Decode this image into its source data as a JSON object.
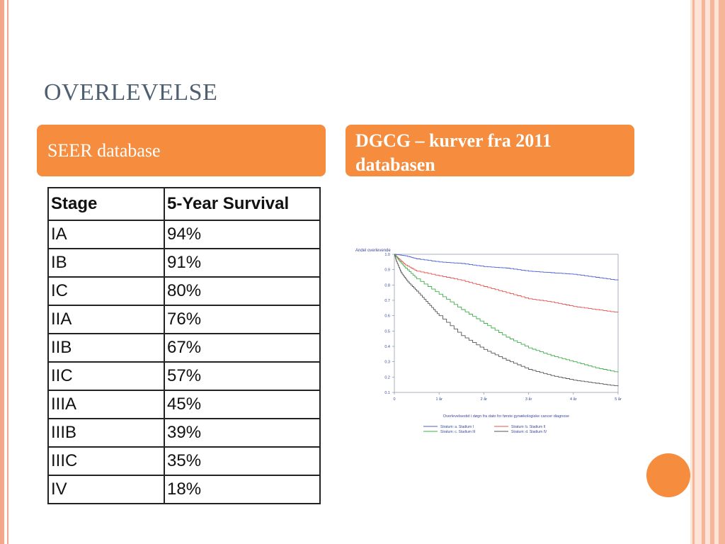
{
  "slide": {
    "title": "OVERLEVELSE",
    "left_box": "SEER database",
    "right_box": "DGCG – kurver fra 2011 databasen"
  },
  "table": {
    "headers": [
      "Stage",
      "5-Year Survival"
    ],
    "rows": [
      [
        "IA",
        "94%"
      ],
      [
        "IB",
        "91%"
      ],
      [
        "IC",
        "80%"
      ],
      [
        "IIA",
        "76%"
      ],
      [
        "IIB",
        "67%"
      ],
      [
        "IIC",
        "57%"
      ],
      [
        "IIIA",
        "45%"
      ],
      [
        "IIIB",
        "39%"
      ],
      [
        "IIIC",
        "35%"
      ],
      [
        "IV",
        "18%"
      ]
    ]
  },
  "chart_data": {
    "type": "line",
    "ylabel": "Andel overlevende",
    "xlabel": "Overlevelsestid i døgn fra dato for første gynækologiske cancer diagnose",
    "x_ticks": [
      "0",
      "1 år",
      "2 år",
      "3 år",
      "4 år",
      "5 år"
    ],
    "y_ticks": [
      "0.1",
      "0.2",
      "0.3",
      "0.4",
      "0.5",
      "0.6",
      "0.7",
      "0.8",
      "0.9",
      "1.0"
    ],
    "xlim": [
      0,
      5
    ],
    "ylim": [
      0.1,
      1.0
    ],
    "series": [
      {
        "name": "Stratum: a. Stadium I",
        "color": "#4a5fd6",
        "x": [
          0,
          0.25,
          0.5,
          1,
          1.5,
          2,
          2.5,
          3,
          3.5,
          4,
          4.5,
          5
        ],
        "y": [
          1.0,
          0.99,
          0.97,
          0.95,
          0.94,
          0.92,
          0.91,
          0.89,
          0.88,
          0.87,
          0.85,
          0.83
        ]
      },
      {
        "name": "Stratum: b. Stadium II",
        "color": "#e8544f",
        "x": [
          0,
          0.1,
          0.25,
          0.5,
          1,
          1.5,
          2,
          2.5,
          3,
          3.5,
          4,
          4.5,
          5
        ],
        "y": [
          1.0,
          0.97,
          0.93,
          0.89,
          0.86,
          0.83,
          0.79,
          0.75,
          0.71,
          0.69,
          0.66,
          0.64,
          0.62
        ]
      },
      {
        "name": "Stratum: c. Stadium III",
        "color": "#3faf4a",
        "x": [
          0,
          0.1,
          0.25,
          0.5,
          1,
          1.5,
          2,
          2.5,
          3,
          3.5,
          4,
          4.5,
          5
        ],
        "y": [
          1.0,
          0.96,
          0.91,
          0.84,
          0.74,
          0.64,
          0.55,
          0.46,
          0.39,
          0.34,
          0.3,
          0.26,
          0.23
        ]
      },
      {
        "name": "Stratum: d. Stadium IV",
        "color": "#555555",
        "x": [
          0,
          0.05,
          0.15,
          0.3,
          0.5,
          0.75,
          1,
          1.5,
          2,
          2.5,
          3,
          3.5,
          4,
          4.5,
          5
        ],
        "y": [
          1.0,
          0.95,
          0.88,
          0.82,
          0.76,
          0.68,
          0.6,
          0.47,
          0.38,
          0.31,
          0.25,
          0.21,
          0.18,
          0.16,
          0.14
        ]
      }
    ]
  }
}
